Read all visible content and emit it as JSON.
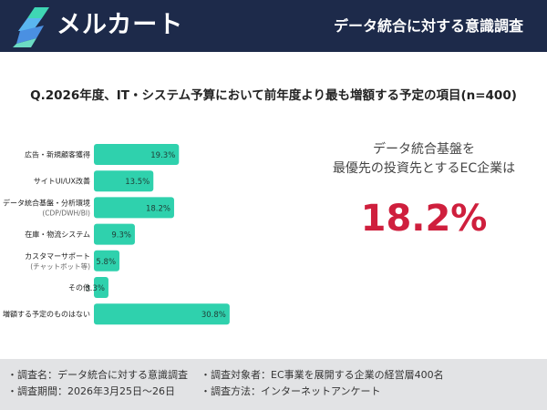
{
  "header": {
    "logo_text": "メルカート",
    "title": "データ統合に対する意識調査",
    "logo_icon": "mercart-logo-icon"
  },
  "question": "Q.2026年度、IT・システム予算において前年度より最も増額する予定の項目(n=400)",
  "chart_data": {
    "type": "bar",
    "orientation": "horizontal",
    "categories": [
      [
        "広告・新規顧客獲得"
      ],
      [
        "サイトUI/UX改善"
      ],
      [
        "データ統合基盤・分析環境",
        "(CDP/DWH/BI)"
      ],
      [
        "在庫・物流システム"
      ],
      [
        "カスタマーサポート",
        "(チャットボット等)"
      ],
      [
        "その他"
      ],
      [
        "増額する予定のものはない"
      ]
    ],
    "values": [
      19.3,
      13.5,
      18.2,
      9.3,
      5.8,
      3.3,
      30.8
    ],
    "value_labels": [
      "19.3%",
      "13.5%",
      "18.2%",
      "9.3%",
      "5.8%",
      "3.3%",
      "30.8%"
    ],
    "bar_color": "#2fd1ad",
    "xlim": [
      0,
      60
    ],
    "grid": false,
    "legend": "none"
  },
  "highlight": {
    "line1": "データ統合基盤を",
    "line2": "最優先の投資先とするEC企業は",
    "value": "18.2%",
    "value_color": "#cf1f3d"
  },
  "footer": {
    "survey_name": "・調査名：データ統合に対する意識調査",
    "survey_target": "・調査対象者：EC事業を展開する企業の経営層400名",
    "survey_period": "・調査期間：2026年3月25日〜26日",
    "survey_method": "・調査方法：インターネットアンケート"
  }
}
